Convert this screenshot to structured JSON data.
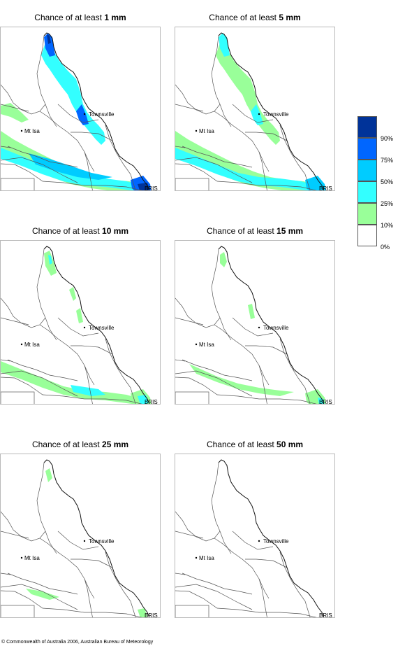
{
  "panels": [
    {
      "title_prefix": "Chance of at least ",
      "amount": "1 mm",
      "level": 0
    },
    {
      "title_prefix": "Chance of at least ",
      "amount": "5 mm",
      "level": 1
    },
    {
      "title_prefix": "Chance of at least ",
      "amount": "10 mm",
      "level": 2
    },
    {
      "title_prefix": "Chance of at least ",
      "amount": "15 mm",
      "level": 3
    },
    {
      "title_prefix": "Chance of at least ",
      "amount": "25 mm",
      "level": 4
    },
    {
      "title_prefix": "Chance of at least ",
      "amount": "50 mm",
      "level": 5
    }
  ],
  "places": {
    "townsville": "Townsville",
    "mt_isa": "Mt Isa",
    "brisbane": "BRIS"
  },
  "legend": {
    "items": [
      {
        "label": "90%",
        "color": "#003399"
      },
      {
        "label": "75%",
        "color": "#0066ff"
      },
      {
        "label": "50%",
        "color": "#00ccff"
      },
      {
        "label": "25%",
        "color": "#33ffff"
      },
      {
        "label": "10%",
        "color": "#99ff99"
      },
      {
        "label": "0%",
        "color": "#ffffff"
      }
    ]
  },
  "footer": "© Commonwealth of Australia 2006, Australian Bureau of Meteorology"
}
